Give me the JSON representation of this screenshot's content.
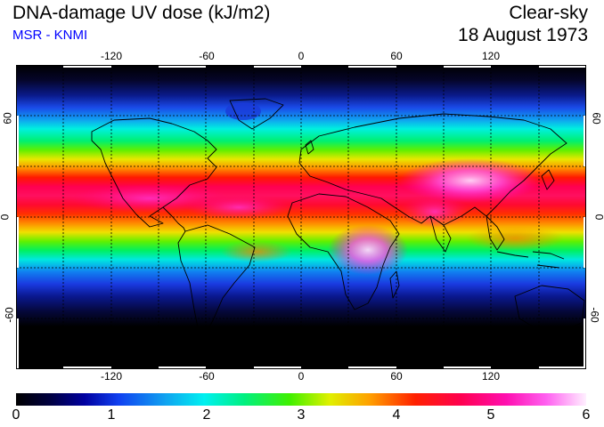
{
  "title": {
    "main": "DNA-damage UV dose (kJ/m2)",
    "source": "MSR - KNMI",
    "condition": "Clear-sky",
    "date": "18 August 1973"
  },
  "map": {
    "lon_ticks": [
      "-120",
      "-60",
      "0",
      "60",
      "120"
    ],
    "lat_ticks": [
      "60",
      "0",
      "-60"
    ],
    "lon_range": [
      -180,
      180
    ],
    "lat_range": [
      -90,
      90
    ]
  },
  "colorbar": {
    "labels": [
      "0",
      "1",
      "2",
      "3",
      "4",
      "5",
      "6"
    ],
    "min": 0,
    "max": 6,
    "unit": "kJ/m2"
  }
}
